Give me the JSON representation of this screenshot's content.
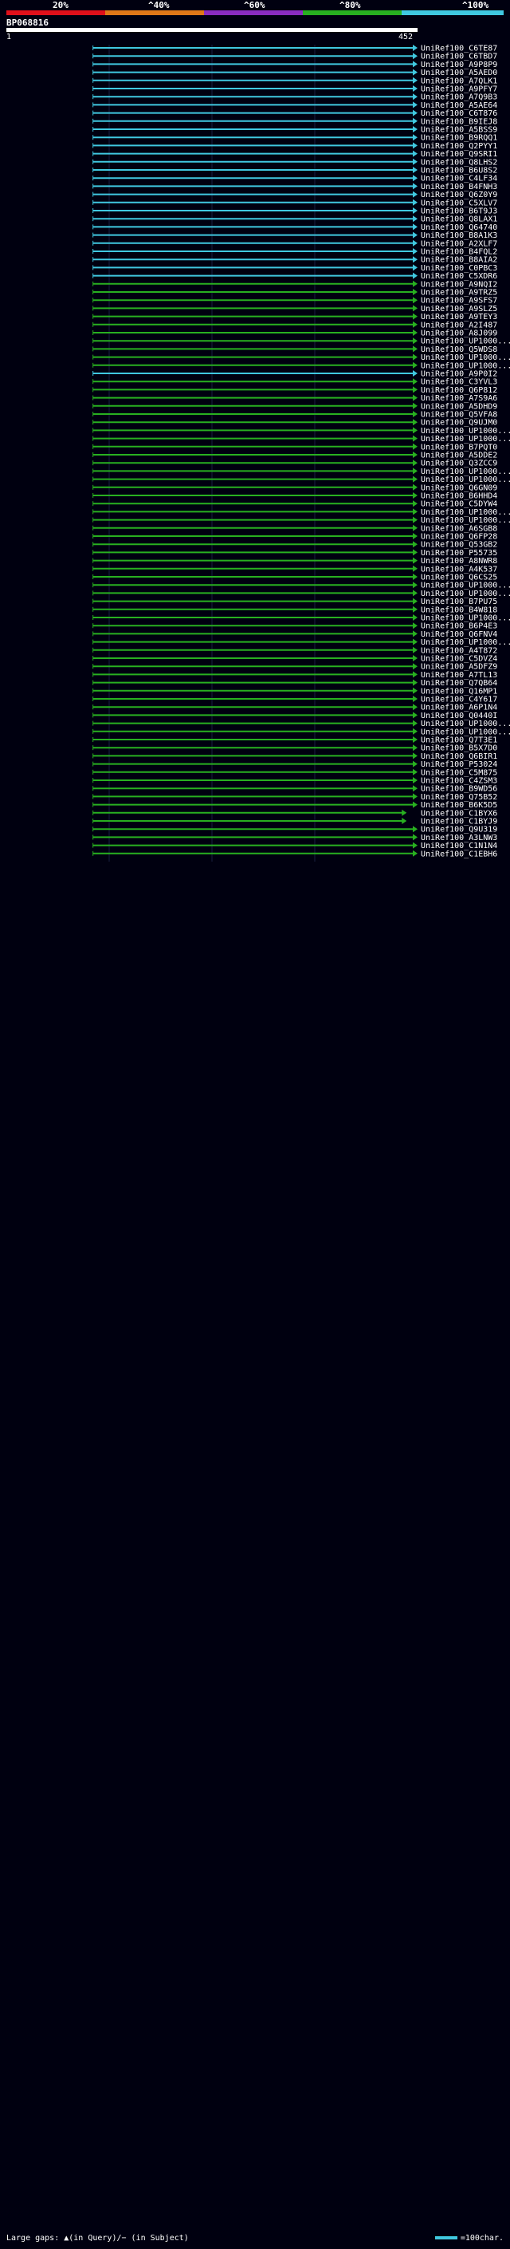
{
  "query_id": "BP068816",
  "query_start_label": "1",
  "query_end_label": "452",
  "scale_labels": [
    "20%",
    "^40%",
    "^60%",
    "^80%",
    "^100%"
  ],
  "scale_colors": [
    "#e0101a",
    "#e07818",
    "#8a2cc0",
    "#28b020",
    "#40c8e0"
  ],
  "footer": {
    "gaps_label": "Large gaps: ▲(in Query)/− (in Subject)",
    "scale_label": "=100char."
  },
  "chart_data": {
    "type": "hit-map",
    "x_unit": "query position",
    "query_length": 452,
    "color_key": {
      "cyan": "100%",
      "green": "80%",
      "purple": "60%"
    },
    "hits": [
      {
        "subject": "UniRef100_C6TE87",
        "start": 96,
        "end": 452,
        "color": "cyan"
      },
      {
        "subject": "UniRef100_C6TBD7",
        "start": 96,
        "end": 452,
        "color": "cyan"
      },
      {
        "subject": "UniRef100_A9P8P9",
        "start": 96,
        "end": 452,
        "color": "cyan"
      },
      {
        "subject": "UniRef100_A5AED0",
        "start": 96,
        "end": 452,
        "color": "cyan"
      },
      {
        "subject": "UniRef100_A7QLK1",
        "start": 96,
        "end": 452,
        "color": "cyan"
      },
      {
        "subject": "UniRef100_A9PFY7",
        "start": 96,
        "end": 452,
        "color": "cyan"
      },
      {
        "subject": "UniRef100_A7Q9B3",
        "start": 96,
        "end": 452,
        "color": "cyan"
      },
      {
        "subject": "UniRef100_A5AE64",
        "start": 96,
        "end": 452,
        "color": "cyan"
      },
      {
        "subject": "UniRef100_C6T876",
        "start": 96,
        "end": 452,
        "color": "cyan"
      },
      {
        "subject": "UniRef100_B9IEJ8",
        "start": 96,
        "end": 452,
        "color": "cyan"
      },
      {
        "subject": "UniRef100_A5BSS9",
        "start": 96,
        "end": 452,
        "color": "cyan"
      },
      {
        "subject": "UniRef100_B9RQQ1",
        "start": 96,
        "end": 452,
        "color": "cyan"
      },
      {
        "subject": "UniRef100_Q2PYY1",
        "start": 96,
        "end": 452,
        "color": "cyan"
      },
      {
        "subject": "UniRef100_Q9SRI1",
        "start": 96,
        "end": 452,
        "color": "cyan"
      },
      {
        "subject": "UniRef100_Q8LHS2",
        "start": 96,
        "end": 452,
        "color": "cyan"
      },
      {
        "subject": "UniRef100_B6U8S2",
        "start": 96,
        "end": 452,
        "color": "cyan"
      },
      {
        "subject": "UniRef100_C4LF34",
        "start": 96,
        "end": 452,
        "color": "cyan"
      },
      {
        "subject": "UniRef100_B4FNH3",
        "start": 96,
        "end": 452,
        "color": "cyan"
      },
      {
        "subject": "UniRef100_Q6Z0Y9",
        "start": 96,
        "end": 452,
        "color": "cyan"
      },
      {
        "subject": "UniRef100_C5XLV7",
        "start": 96,
        "end": 452,
        "color": "cyan"
      },
      {
        "subject": "UniRef100_B6T9J3",
        "start": 96,
        "end": 452,
        "color": "cyan"
      },
      {
        "subject": "UniRef100_Q8LAX1",
        "start": 96,
        "end": 452,
        "color": "cyan"
      },
      {
        "subject": "UniRef100_Q64740",
        "start": 96,
        "end": 452,
        "color": "cyan"
      },
      {
        "subject": "UniRef100_B8A1K3",
        "start": 96,
        "end": 452,
        "color": "cyan"
      },
      {
        "subject": "UniRef100_A2XLF7",
        "start": 96,
        "end": 452,
        "color": "cyan"
      },
      {
        "subject": "UniRef100_B4FQL2",
        "start": 96,
        "end": 452,
        "color": "cyan"
      },
      {
        "subject": "UniRef100_B8AIA2",
        "start": 96,
        "end": 452,
        "color": "cyan"
      },
      {
        "subject": "UniRef100_C0PBC3",
        "start": 96,
        "end": 452,
        "color": "cyan"
      },
      {
        "subject": "UniRef100_C5XDR6",
        "start": 96,
        "end": 452,
        "color": "cyan"
      },
      {
        "subject": "UniRef100_A9NQI2",
        "start": 96,
        "end": 452,
        "color": "green"
      },
      {
        "subject": "UniRef100_A9TRZ5",
        "start": 96,
        "end": 452,
        "color": "green"
      },
      {
        "subject": "UniRef100_A9SFS7",
        "start": 96,
        "end": 452,
        "color": "green"
      },
      {
        "subject": "UniRef100_A9SLZ5",
        "start": 96,
        "end": 452,
        "color": "green"
      },
      {
        "subject": "UniRef100_A9TEY3",
        "start": 96,
        "end": 452,
        "color": "green"
      },
      {
        "subject": "UniRef100_A2I487",
        "start": 96,
        "end": 452,
        "color": "green"
      },
      {
        "subject": "UniRef100_A8J099",
        "start": 96,
        "end": 452,
        "color": "green"
      },
      {
        "subject": "UniRef100_UP1000...",
        "start": 96,
        "end": 452,
        "color": "green"
      },
      {
        "subject": "UniRef100_Q5WDS8",
        "start": 96,
        "end": 452,
        "color": "green"
      },
      {
        "subject": "UniRef100_UP1000...",
        "start": 96,
        "end": 452,
        "color": "green"
      },
      {
        "subject": "UniRef100_UP1000...",
        "start": 96,
        "end": 452,
        "color": "green"
      },
      {
        "subject": "UniRef100_A9P0I2",
        "start": 96,
        "end": 452,
        "color": "cyan"
      },
      {
        "subject": "UniRef100_C3YVL3",
        "start": 96,
        "end": 452,
        "color": "green"
      },
      {
        "subject": "UniRef100_Q6P812",
        "start": 96,
        "end": 452,
        "color": "green"
      },
      {
        "subject": "UniRef100_A7S9A6",
        "start": 96,
        "end": 452,
        "color": "green"
      },
      {
        "subject": "UniRef100_A5DHD9",
        "start": 96,
        "end": 452,
        "color": "green"
      },
      {
        "subject": "UniRef100_Q5VFA8",
        "start": 96,
        "end": 452,
        "color": "green"
      },
      {
        "subject": "UniRef100_Q9UJM0",
        "start": 96,
        "end": 452,
        "color": "green"
      },
      {
        "subject": "UniRef100_UP1000...",
        "start": 96,
        "end": 452,
        "color": "green"
      },
      {
        "subject": "UniRef100_UP1000...",
        "start": 96,
        "end": 452,
        "color": "green"
      },
      {
        "subject": "UniRef100_B7PQT0",
        "start": 96,
        "end": 452,
        "color": "green"
      },
      {
        "subject": "UniRef100_A5DDE2",
        "start": 96,
        "end": 452,
        "color": "green"
      },
      {
        "subject": "UniRef100_Q3ZCC9",
        "start": 96,
        "end": 452,
        "color": "green"
      },
      {
        "subject": "UniRef100_UP1000...",
        "start": 96,
        "end": 452,
        "color": "green"
      },
      {
        "subject": "UniRef100_UP1000...",
        "start": 96,
        "end": 452,
        "color": "green"
      },
      {
        "subject": "UniRef100_Q6GN09",
        "start": 96,
        "end": 452,
        "color": "green"
      },
      {
        "subject": "UniRef100_B6HHD4",
        "start": 96,
        "end": 452,
        "color": "green"
      },
      {
        "subject": "UniRef100_C5DYW4",
        "start": 96,
        "end": 452,
        "color": "green"
      },
      {
        "subject": "UniRef100_UP1000...",
        "start": 96,
        "end": 452,
        "color": "green"
      },
      {
        "subject": "UniRef100_UP1000...",
        "start": 96,
        "end": 452,
        "color": "green"
      },
      {
        "subject": "UniRef100_A6SGB8",
        "start": 96,
        "end": 452,
        "color": "green"
      },
      {
        "subject": "UniRef100_Q6FP28",
        "start": 96,
        "end": 452,
        "color": "green"
      },
      {
        "subject": "UniRef100_Q53GB2",
        "start": 96,
        "end": 452,
        "color": "green"
      },
      {
        "subject": "UniRef100_P55735",
        "start": 96,
        "end": 452,
        "color": "green"
      },
      {
        "subject": "UniRef100_A8NWR8",
        "start": 96,
        "end": 452,
        "color": "green"
      },
      {
        "subject": "UniRef100_A4K537",
        "start": 96,
        "end": 452,
        "color": "green"
      },
      {
        "subject": "UniRef100_Q6CS25",
        "start": 96,
        "end": 452,
        "color": "green"
      },
      {
        "subject": "UniRef100_UP1000...",
        "start": 96,
        "end": 452,
        "color": "green"
      },
      {
        "subject": "UniRef100_UP1000...",
        "start": 96,
        "end": 452,
        "color": "green"
      },
      {
        "subject": "UniRef100_B7PU75",
        "start": 96,
        "end": 452,
        "color": "green"
      },
      {
        "subject": "UniRef100_B4W818",
        "start": 96,
        "end": 452,
        "color": "green"
      },
      {
        "subject": "UniRef100_UP1000...",
        "start": 96,
        "end": 452,
        "color": "green"
      },
      {
        "subject": "UniRef100_B6P4E3",
        "start": 96,
        "end": 452,
        "color": "green"
      },
      {
        "subject": "UniRef100_Q6FNV4",
        "start": 96,
        "end": 452,
        "color": "green"
      },
      {
        "subject": "UniRef100_UP1000...",
        "start": 96,
        "end": 452,
        "color": "green"
      },
      {
        "subject": "UniRef100_A4T872",
        "start": 96,
        "end": 452,
        "color": "green"
      },
      {
        "subject": "UniRef100_C5DVZ4",
        "start": 96,
        "end": 452,
        "color": "green"
      },
      {
        "subject": "UniRef100_A5DFZ9",
        "start": 96,
        "end": 452,
        "color": "green"
      },
      {
        "subject": "UniRef100_A7TL13",
        "start": 96,
        "end": 452,
        "color": "green"
      },
      {
        "subject": "UniRef100_Q7QB64",
        "start": 96,
        "end": 452,
        "color": "green"
      },
      {
        "subject": "UniRef100_Q16MP1",
        "start": 96,
        "end": 452,
        "color": "green"
      },
      {
        "subject": "UniRef100_C4Y617",
        "start": 96,
        "end": 452,
        "color": "green"
      },
      {
        "subject": "UniRef100_A6P1N4",
        "start": 96,
        "end": 452,
        "color": "green"
      },
      {
        "subject": "UniRef100_Q0440I",
        "start": 96,
        "end": 452,
        "color": "green"
      },
      {
        "subject": "UniRef100_UP1000...",
        "start": 96,
        "end": 452,
        "color": "green"
      },
      {
        "subject": "UniRef100_UP1000...",
        "start": 96,
        "end": 452,
        "color": "green"
      },
      {
        "subject": "UniRef100_Q7T3E1",
        "start": 96,
        "end": 452,
        "color": "green"
      },
      {
        "subject": "UniRef100_B5X7D0",
        "start": 96,
        "end": 452,
        "color": "green"
      },
      {
        "subject": "UniRef100_Q6BIR1",
        "start": 96,
        "end": 452,
        "color": "green"
      },
      {
        "subject": "UniRef100_P53024",
        "start": 96,
        "end": 452,
        "color": "green"
      },
      {
        "subject": "UniRef100_C5M875",
        "start": 96,
        "end": 452,
        "color": "green"
      },
      {
        "subject": "UniRef100_C4ZSM3",
        "start": 96,
        "end": 452,
        "color": "green"
      },
      {
        "subject": "UniRef100_B9WD56",
        "start": 96,
        "end": 452,
        "color": "green"
      },
      {
        "subject": "UniRef100_Q75B52",
        "start": 96,
        "end": 452,
        "color": "green"
      },
      {
        "subject": "UniRef100_B6K5D5",
        "start": 96,
        "end": 452,
        "color": "green"
      },
      {
        "subject": "UniRef100_C1BYX6",
        "start": 96,
        "end": 440,
        "color": "green"
      },
      {
        "subject": "UniRef100_C1BYJ9",
        "start": 96,
        "end": 440,
        "color": "green"
      },
      {
        "subject": "UniRef100_Q9U319",
        "start": 96,
        "end": 452,
        "color": "green"
      },
      {
        "subject": "UniRef100_A3LNW3",
        "start": 96,
        "end": 452,
        "color": "green"
      },
      {
        "subject": "UniRef100_C1N1N4",
        "start": 96,
        "end": 452,
        "color": "green"
      },
      {
        "subject": "UniRef100_C1EBH6",
        "start": 96,
        "end": 452,
        "color": "green"
      }
    ]
  }
}
